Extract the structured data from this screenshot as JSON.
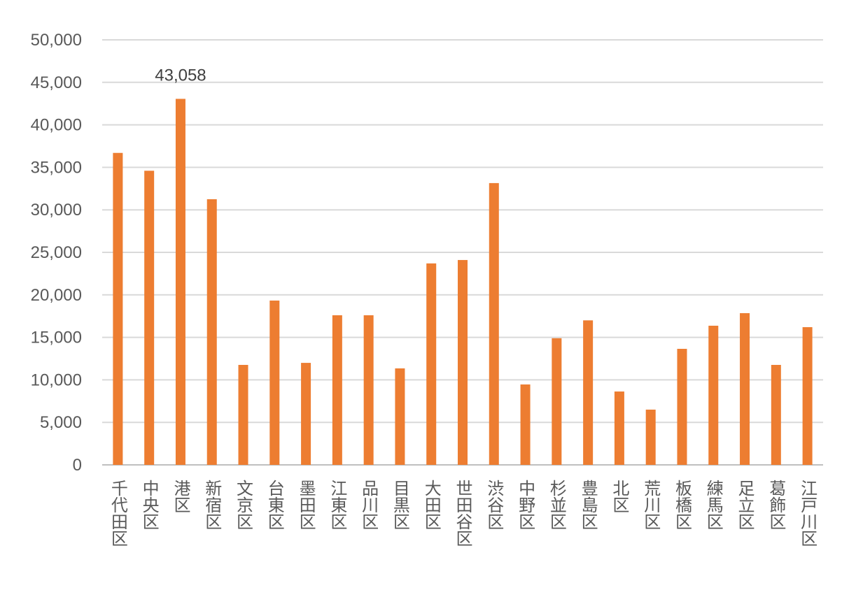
{
  "chart_data": {
    "type": "bar",
    "title": "",
    "xlabel": "",
    "ylabel": "",
    "ylim": [
      0,
      50000
    ],
    "yticks": [
      0,
      5000,
      10000,
      15000,
      20000,
      25000,
      30000,
      35000,
      40000,
      45000,
      50000
    ],
    "ytick_labels": [
      "0",
      "5,000",
      "10,000",
      "15,000",
      "20,000",
      "25,000",
      "30,000",
      "35,000",
      "40,000",
      "45,000",
      "50,000"
    ],
    "grid": true,
    "legend": "none",
    "bar_color": "#ED7D31",
    "categories": [
      "千代田区",
      "中央区",
      "港区",
      "新宿区",
      "文京区",
      "台東区",
      "墨田区",
      "江東区",
      "品川区",
      "目黒区",
      "大田区",
      "世田谷区",
      "渋谷区",
      "中野区",
      "杉並区",
      "豊島区",
      "北区",
      "荒川区",
      "板橋区",
      "練馬区",
      "足立区",
      "葛飾区",
      "江戸川区"
    ],
    "values": [
      36700,
      34600,
      43058,
      31250,
      11760,
      19330,
      12000,
      17600,
      17600,
      11350,
      23700,
      24100,
      33150,
      9460,
      14900,
      17000,
      8630,
      6500,
      13650,
      16370,
      17850,
      11760,
      16200
    ],
    "data_labels": [
      {
        "category": "港区",
        "text": "43,058"
      }
    ]
  }
}
